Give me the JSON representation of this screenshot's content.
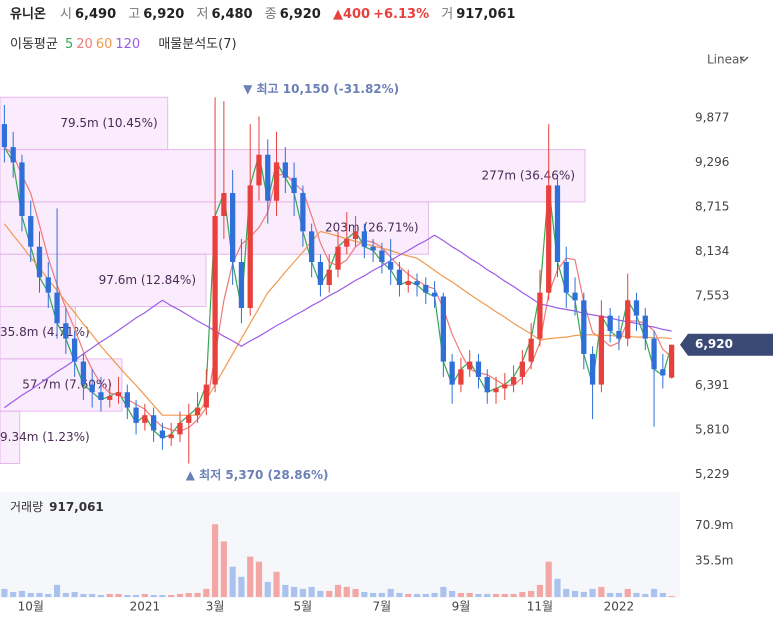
{
  "chart_data": {
    "type": "candlestick",
    "name": "유니온",
    "info": [
      {
        "label": "시",
        "text": "6,490"
      },
      {
        "label": "고",
        "text": "6,920"
      },
      {
        "label": "저",
        "text": "6,480"
      },
      {
        "label": "종",
        "text": "6,920"
      }
    ],
    "change": "▲400",
    "change_pct": "+6.13%",
    "turnover": {
      "label": "거",
      "text": "917,061"
    },
    "ma_title": "이동평균",
    "profile_title": "매물분석도(7)",
    "scale_mode": "Linear",
    "categories": [
      null,
      null,
      null,
      "10월",
      null,
      null,
      null,
      null,
      null,
      null,
      null,
      null,
      null,
      null,
      null,
      null,
      "2021",
      null,
      null,
      null,
      null,
      null,
      null,
      null,
      "3월",
      null,
      null,
      null,
      null,
      null,
      null,
      null,
      null,
      null,
      "5월",
      null,
      null,
      null,
      null,
      null,
      null,
      null,
      null,
      "7월",
      null,
      null,
      null,
      null,
      null,
      null,
      null,
      null,
      "9월",
      null,
      null,
      null,
      null,
      null,
      null,
      null,
      null,
      "11월",
      null,
      null,
      null,
      null,
      null,
      null,
      null,
      null,
      "2022",
      null,
      null,
      null,
      null,
      null,
      null
    ],
    "ohlc": {
      "open": [
        9800,
        9500,
        9300,
        8600,
        8200,
        7800,
        7600,
        7200,
        7000,
        6700,
        6400,
        6300,
        6200,
        6250,
        6300,
        6100,
        5900,
        6000,
        5800,
        5700,
        5750,
        5900,
        6000,
        6100,
        6400,
        8600,
        8900,
        8000,
        7400,
        9000,
        9400,
        8800,
        9300,
        9100,
        8900,
        8400,
        8000,
        7700,
        7900,
        8200,
        8300,
        8400,
        8200,
        8150,
        8000,
        7900,
        7700,
        7750,
        7700,
        7600,
        7550,
        6700,
        6400,
        6600,
        6700,
        6500,
        6300,
        6350,
        6400,
        6500,
        6700,
        7000,
        7600,
        9000,
        8000,
        7600,
        7500,
        6800,
        6400,
        7300,
        7100,
        7000,
        7500,
        7300,
        7000,
        6600,
        6490
      ],
      "high": [
        10050,
        9700,
        9400,
        8800,
        8400,
        8000,
        8700,
        7400,
        7100,
        6800,
        6600,
        6500,
        6450,
        6500,
        6400,
        6200,
        6150,
        6100,
        5900,
        5900,
        6050,
        6150,
        6300,
        6600,
        10150,
        10100,
        9200,
        8300,
        9800,
        9900,
        9600,
        9700,
        9500,
        9300,
        9000,
        8500,
        8100,
        8100,
        8400,
        8650,
        8600,
        8500,
        8300,
        8250,
        8300,
        8000,
        7900,
        7850,
        7800,
        7750,
        7600,
        6800,
        6750,
        6850,
        6800,
        6600,
        6500,
        6550,
        6650,
        6850,
        7200,
        7900,
        9800,
        9100,
        8200,
        7800,
        7600,
        6900,
        7500,
        7400,
        7300,
        7850,
        7600,
        7400,
        7100,
        6800,
        6920
      ],
      "low": [
        9300,
        9100,
        8400,
        8000,
        7600,
        7400,
        7000,
        6800,
        6500,
        6200,
        6100,
        6050,
        6100,
        6150,
        5950,
        5750,
        5800,
        5650,
        5550,
        5600,
        5650,
        5370,
        5900,
        6000,
        6300,
        8300,
        7700,
        7200,
        7300,
        8800,
        8500,
        8600,
        8900,
        8600,
        8200,
        7800,
        7550,
        7600,
        7800,
        8100,
        8200,
        8050,
        8000,
        7850,
        7700,
        7550,
        7600,
        7550,
        7450,
        7400,
        6500,
        6150,
        6300,
        6500,
        6350,
        6150,
        6150,
        6200,
        6300,
        6400,
        6600,
        6900,
        7500,
        7800,
        7400,
        7300,
        6600,
        5950,
        6300,
        6950,
        6850,
        6900,
        7100,
        6850,
        5850,
        6350,
        6480
      ],
      "close": [
        9500,
        9300,
        8600,
        8200,
        7800,
        7600,
        7200,
        7000,
        6700,
        6400,
        6300,
        6200,
        6250,
        6300,
        6100,
        5900,
        6000,
        5800,
        5700,
        5750,
        5900,
        6000,
        6100,
        6400,
        8600,
        8900,
        8000,
        7400,
        9000,
        9400,
        8800,
        9300,
        9100,
        8900,
        8400,
        8000,
        7700,
        7900,
        8200,
        8300,
        8400,
        8200,
        8150,
        8000,
        7900,
        7700,
        7750,
        7700,
        7600,
        7550,
        6700,
        6400,
        6600,
        6700,
        6500,
        6300,
        6350,
        6400,
        6500,
        6700,
        7000,
        7600,
        9000,
        8000,
        7600,
        7500,
        6800,
        6400,
        7300,
        7100,
        7000,
        7500,
        7300,
        7000,
        6600,
        6520,
        6920
      ]
    },
    "up_color": "#e8403c",
    "down_color": "#2f6fd8",
    "series": [
      {
        "name": "5",
        "color": "#35a853",
        "values": [
          9500,
          9300,
          8600,
          8200,
          7800,
          7600,
          7200,
          7000,
          6700,
          6400,
          6300,
          6200,
          6250,
          6300,
          6100,
          5900,
          6000,
          5800,
          5700,
          5750,
          5900,
          6000,
          6100,
          6400,
          8600,
          8900,
          8000,
          7400,
          9000,
          9400,
          8800,
          9300,
          9100,
          8900,
          8400,
          8000,
          7700,
          7900,
          8200,
          8300,
          8400,
          8200,
          8150,
          8000,
          7900,
          7700,
          7750,
          7700,
          7600,
          7550,
          6700,
          6400,
          6600,
          6700,
          6500,
          6300,
          6350,
          6400,
          6500,
          6700,
          7000,
          7600,
          9000,
          8000,
          7600,
          7500,
          6800,
          6400,
          7300,
          7100,
          7000,
          7500,
          7300,
          7000,
          6600,
          6520,
          6920
        ]
      },
      {
        "name": "20",
        "color": "#f07a7a",
        "values": [
          9500,
          9400,
          9130,
          8900,
          8480,
          8050,
          7700,
          7400,
          7130,
          6830,
          6600,
          6400,
          6290,
          6260,
          6210,
          6140,
          6080,
          5950,
          5850,
          5810,
          5790,
          5840,
          5940,
          6100,
          6780,
          7500,
          7980,
          8230,
          8330,
          8450,
          8650,
          9130,
          9150,
          9030,
          8930,
          8600,
          8250,
          8000,
          7950,
          8030,
          8200,
          8280,
          8260,
          8190,
          8060,
          7940,
          7840,
          7760,
          7690,
          7650,
          7390,
          7060,
          6810,
          6600,
          6550,
          6530,
          6460,
          6390,
          6390,
          6490,
          6650,
          6950,
          7580,
          7900,
          8050,
          8030,
          7480,
          7080,
          7000,
          6900,
          6950,
          7230,
          7230,
          7200,
          7100,
          6860,
          6760
        ]
      },
      {
        "name": "60",
        "color": "#f19a4e",
        "values": [
          8500,
          8350,
          8210,
          8060,
          7920,
          7770,
          7630,
          7480,
          7340,
          7190,
          7050,
          6900,
          6770,
          6640,
          6510,
          6390,
          6260,
          6130,
          6000,
          6000,
          6000,
          6000,
          6000,
          6200,
          6400,
          6600,
          6800,
          7000,
          7200,
          7400,
          7600,
          7730,
          7870,
          8000,
          8130,
          8270,
          8400,
          8370,
          8340,
          8300,
          8270,
          8240,
          8210,
          8180,
          8150,
          8110,
          8080,
          8050,
          7970,
          7890,
          7810,
          7740,
          7660,
          7580,
          7500,
          7430,
          7350,
          7280,
          7200,
          7130,
          7060,
          6980,
          7000,
          7010,
          7020,
          7040,
          7050,
          7050,
          7040,
          7040,
          7030,
          7030,
          7020,
          7020,
          7010,
          7010,
          7000
        ]
      },
      {
        "name": "120",
        "color": "#9b5de5",
        "values": [
          6100,
          6180,
          6260,
          6330,
          6410,
          6490,
          6570,
          6640,
          6720,
          6800,
          6880,
          6960,
          7030,
          7110,
          7190,
          7270,
          7340,
          7420,
          7500,
          7430,
          7370,
          7300,
          7230,
          7170,
          7100,
          7030,
          6970,
          6900,
          6970,
          7030,
          7100,
          7170,
          7230,
          7300,
          7360,
          7430,
          7490,
          7560,
          7620,
          7690,
          7760,
          7820,
          7890,
          7950,
          8020,
          8090,
          8150,
          8220,
          8280,
          8350,
          8280,
          8200,
          8130,
          8050,
          7980,
          7900,
          7830,
          7750,
          7680,
          7600,
          7530,
          7450,
          7430,
          7400,
          7380,
          7360,
          7330,
          7310,
          7290,
          7270,
          7240,
          7220,
          7200,
          7170,
          7150,
          7120,
          7100
        ]
      }
    ],
    "ylim": [
      5050,
      10180
    ],
    "yticks": [
      {
        "value": 5229,
        "label": "5,229"
      },
      {
        "value": 5810,
        "label": "5,810"
      },
      {
        "value": 6391,
        "label": "6,391"
      },
      {
        "value": 7553,
        "label": "7,553"
      },
      {
        "value": 8134,
        "label": "8,134"
      },
      {
        "value": 8715,
        "label": "8,715"
      },
      {
        "value": 9296,
        "label": "9,296"
      },
      {
        "value": 9877,
        "label": "9,877"
      }
    ],
    "grid": false,
    "last_price": {
      "value": 6920,
      "label": "6,920"
    },
    "annotations": [
      {
        "text": "▼ 최고 10,150 (-31.82%)",
        "value": 10150
      },
      {
        "text": "▲ 최저 5,370 (28.86%)",
        "value": 5370
      }
    ],
    "volume_profile": {
      "values": [
        9340000,
        57700000,
        35800000,
        97600000,
        203000000,
        277000000,
        79500000
      ],
      "percents": [
        1.23,
        7.6,
        4.71,
        12.84,
        26.71,
        36.46,
        10.45
      ],
      "value_labels": [
        "9.34m (1.23%)",
        "57.7m (7.60%)",
        "35.8m (4.71%)",
        "97.6m (12.84%)",
        "203m (26.71%)",
        "277m (36.46%)",
        "79.5m (10.45%)"
      ]
    },
    "volume": {
      "name": "거래량",
      "last_label": "917,061",
      "values": [
        8000000,
        5000000,
        6000000,
        4000000,
        4000000,
        3000000,
        12000000,
        4000000,
        5000000,
        3000000,
        3000000,
        2000000,
        3000000,
        3000000,
        2000000,
        2000000,
        3000000,
        2000000,
        2000000,
        2000000,
        3000000,
        4000000,
        4000000,
        8000000,
        72000000,
        55000000,
        30000000,
        20000000,
        40000000,
        35000000,
        15000000,
        25000000,
        12000000,
        10000000,
        8000000,
        10000000,
        6000000,
        6000000,
        12000000,
        10000000,
        8000000,
        5000000,
        4000000,
        4000000,
        8000000,
        4000000,
        3000000,
        3000000,
        3000000,
        4000000,
        10000000,
        6000000,
        4000000,
        4000000,
        3000000,
        3000000,
        3000000,
        3000000,
        3000000,
        5000000,
        6000000,
        12000000,
        35000000,
        18000000,
        8000000,
        6000000,
        5000000,
        8000000,
        10000000,
        4000000,
        4000000,
        8000000,
        4000000,
        3000000,
        8000000,
        4000000,
        917061
      ],
      "ylim": [
        0,
        101000000
      ],
      "yticks": [
        {
          "value": 35500000,
          "label": "35.5m"
        },
        {
          "value": 70900000,
          "label": "70.9m"
        }
      ]
    }
  }
}
